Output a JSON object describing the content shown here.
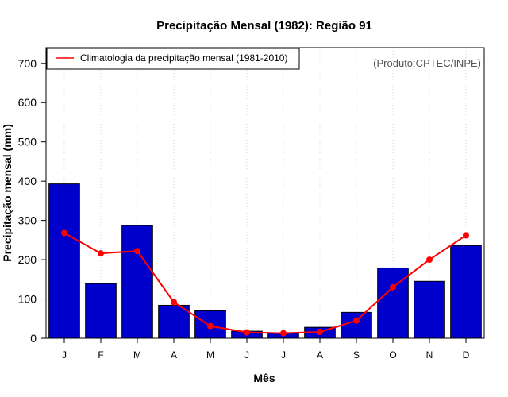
{
  "chart_data": {
    "type": "bar",
    "title": "Precipitação Mensal (1982): Região 91",
    "xlabel": "Mês",
    "ylabel": "Precipitação mensal (mm)",
    "ylim": [
      0,
      740
    ],
    "yticks": [
      0,
      100,
      200,
      300,
      400,
      500,
      600,
      700
    ],
    "categories": [
      "J",
      "F",
      "M",
      "A",
      "M",
      "J",
      "J",
      "A",
      "S",
      "O",
      "N",
      "D"
    ],
    "series": [
      {
        "name": "Precipitação mensal (1982)",
        "kind": "bar",
        "color": "#0000CC",
        "values": [
          393,
          139,
          287,
          84,
          70,
          18,
          13,
          28,
          66,
          179,
          145,
          236
        ]
      },
      {
        "name": "Climatologia da precipitação mensal (1981-2010)",
        "kind": "line",
        "color": "#FF0000",
        "values": [
          268,
          216,
          222,
          92,
          31,
          15,
          13,
          16,
          45,
          130,
          200,
          262
        ]
      }
    ],
    "legend": {
      "entries": [
        "Climatologia da precipitação mensal (1981-2010)"
      ],
      "position": "top-left"
    },
    "annotation": "(Produto:CPTEC/INPE)",
    "grid": "vertical dotted"
  }
}
